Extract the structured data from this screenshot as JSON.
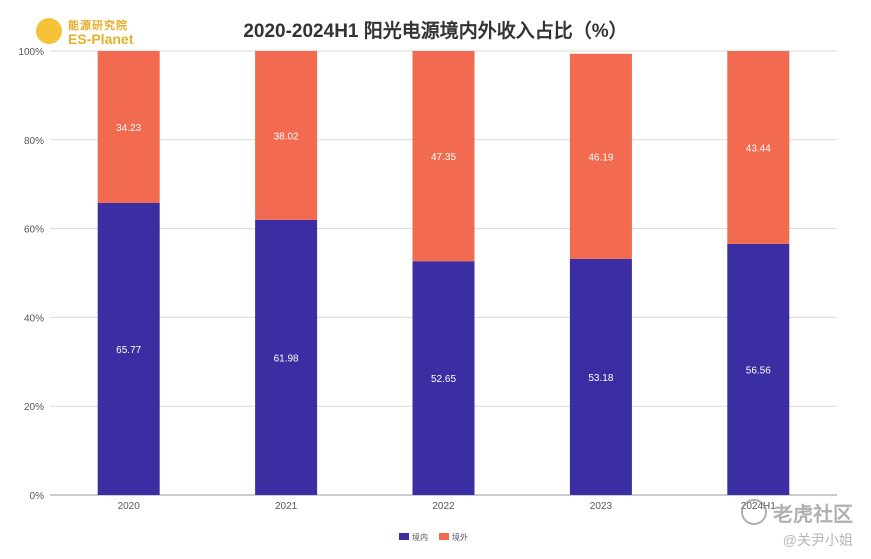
{
  "logo": {
    "text_cn": "能源研究院",
    "text_en": "ES-Planet"
  },
  "chart_data": {
    "type": "bar",
    "stacked": true,
    "title": "2020-2024H1 阳光电源境内外收入占比（%）",
    "categories": [
      "2020",
      "2021",
      "2022",
      "2023",
      "2024H1"
    ],
    "series": [
      {
        "name": "境内",
        "color": "#3b2ea3",
        "values": [
          65.77,
          61.98,
          52.65,
          53.18,
          56.56
        ]
      },
      {
        "name": "境外",
        "color": "#f26a4f",
        "values": [
          34.23,
          38.02,
          47.35,
          46.19,
          43.44
        ]
      }
    ],
    "ylim": [
      0,
      100
    ],
    "yticks": [
      "0%",
      "20%",
      "40%",
      "60%",
      "80%",
      "100%"
    ],
    "grid": true,
    "legend": "bottom-center"
  },
  "watermark": {
    "main": "老虎社区",
    "sub": "@关尹小姐"
  }
}
